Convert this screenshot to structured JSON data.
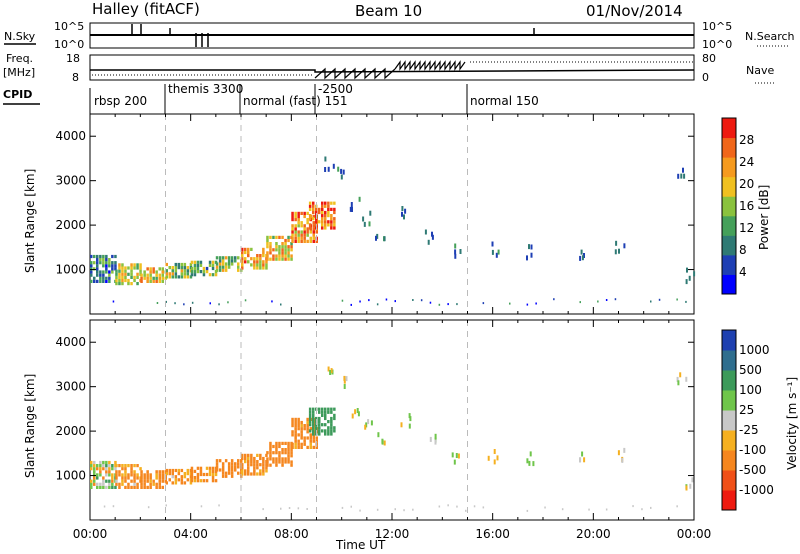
{
  "header": {
    "station": "Halley (fitACF)",
    "beam": "Beam 10",
    "date": "01/Nov/2014"
  },
  "summary": {
    "nsky_label": "N.Sky",
    "nsky_ticks": [
      "10^5",
      "10^0"
    ],
    "nsearch_label": "N.Search",
    "nsearch_ticks": [
      "10^5",
      "10^0"
    ],
    "freq_label": "Freq.",
    "freq_unit": "[MHz]",
    "freq_ticks": [
      "18",
      "8"
    ],
    "nave_label": "Nave",
    "nave_ticks": [
      "80",
      "0"
    ],
    "cpid_label": "CPID"
  },
  "cpid_modes": [
    {
      "label": "rbsp 200",
      "start_h": 0
    },
    {
      "label": "themis 3300",
      "start_h": 3
    },
    {
      "label": "normal (fast) 151",
      "start_h": 6
    },
    {
      "label": "-2500",
      "start_h": 9
    },
    {
      "label": "normal 150",
      "start_h": 15
    }
  ],
  "colors": {
    "power": [
      "#0000ff",
      "#1e3fb4",
      "#2f7a74",
      "#45a05a",
      "#8ac23e",
      "#f0c020",
      "#f59a1e",
      "#f0661a",
      "#ee1a10"
    ],
    "velocity": [
      "#ee1a10",
      "#f05018",
      "#f5861e",
      "#f5b020",
      "#c8c8c8",
      "#6fc54a",
      "#3c9a5a",
      "#2f6e8e",
      "#1e40b0"
    ],
    "ground_scatter": "#c8c8c8"
  },
  "chart_data": [
    {
      "type": "heatmap",
      "panel": "power",
      "ylabel": "Slant Range [km]",
      "xlabel": "Time UT",
      "x_ticks": [
        "00:00",
        "04:00",
        "08:00",
        "12:00",
        "16:00",
        "20:00",
        "00:00"
      ],
      "xlim": [
        0,
        24
      ],
      "ylim": [
        0,
        4500
      ],
      "y_ticks": [
        1000,
        2000,
        3000,
        4000
      ],
      "colorbar": {
        "label": "Power [dB]",
        "ticks": [
          "4",
          "8",
          "12",
          "16",
          "20",
          "24",
          "28"
        ],
        "range": [
          0,
          32
        ]
      },
      "echo_band": [
        {
          "t": 0.5,
          "lo": 700,
          "hi": 1300,
          "p": 10
        },
        {
          "t": 1.5,
          "lo": 650,
          "hi": 1100,
          "p": 18
        },
        {
          "t": 2.5,
          "lo": 700,
          "hi": 1050,
          "p": 20
        },
        {
          "t": 3.5,
          "lo": 800,
          "hi": 1100,
          "p": 16
        },
        {
          "t": 4.5,
          "lo": 850,
          "hi": 1200,
          "p": 14
        },
        {
          "t": 5.5,
          "lo": 950,
          "hi": 1300,
          "p": 16
        },
        {
          "t": 6.5,
          "lo": 1000,
          "hi": 1450,
          "p": 22
        },
        {
          "t": 7.5,
          "lo": 1200,
          "hi": 1700,
          "p": 20
        },
        {
          "t": 8.5,
          "lo": 1600,
          "hi": 2300,
          "p": 24
        },
        {
          "t": 9.2,
          "lo": 1900,
          "hi": 2500,
          "p": 26
        }
      ],
      "sparse_echoes": [
        {
          "t": 9.5,
          "r": 3400
        },
        {
          "t": 10.0,
          "r": 3200
        },
        {
          "t": 10.5,
          "r": 2500
        },
        {
          "t": 11.0,
          "r": 2200
        },
        {
          "t": 11.5,
          "r": 1900
        },
        {
          "t": 12.5,
          "r": 2300
        },
        {
          "t": 13.5,
          "r": 1800
        },
        {
          "t": 14.5,
          "r": 1500
        },
        {
          "t": 16.0,
          "r": 1500
        },
        {
          "t": 17.5,
          "r": 1450
        },
        {
          "t": 19.5,
          "r": 1400
        },
        {
          "t": 21.0,
          "r": 1500
        },
        {
          "t": 23.5,
          "r": 3200
        },
        {
          "t": 23.8,
          "r": 900
        }
      ]
    },
    {
      "type": "heatmap",
      "panel": "velocity",
      "ylabel": "Slant Range [km]",
      "xlabel": "Time UT",
      "x_ticks": [
        "00:00",
        "04:00",
        "08:00",
        "12:00",
        "16:00",
        "20:00",
        "00:00"
      ],
      "xlim": [
        0,
        24
      ],
      "ylim": [
        0,
        4500
      ],
      "y_ticks": [
        1000,
        2000,
        3000,
        4000
      ],
      "colorbar": {
        "label": "Velocity [m s⁻¹]",
        "ticks": [
          "-1000",
          "-500",
          "-100",
          "-25",
          "25",
          "100",
          "500",
          "1000"
        ]
      },
      "echo_band": [
        {
          "t": 0.5,
          "lo": 700,
          "hi": 1300,
          "v": 0
        },
        {
          "t": 1.5,
          "lo": 700,
          "hi": 1200,
          "v": -150
        },
        {
          "t": 2.5,
          "lo": 700,
          "hi": 1100,
          "v": -200
        },
        {
          "t": 3.5,
          "lo": 800,
          "hi": 1100,
          "v": -150
        },
        {
          "t": 4.5,
          "lo": 850,
          "hi": 1200,
          "v": -200
        },
        {
          "t": 5.5,
          "lo": 950,
          "hi": 1350,
          "v": -250
        },
        {
          "t": 6.5,
          "lo": 1000,
          "hi": 1450,
          "v": -200
        },
        {
          "t": 7.5,
          "lo": 1200,
          "hi": 1700,
          "v": -250
        },
        {
          "t": 8.5,
          "lo": 1600,
          "hi": 2300,
          "v": -200
        },
        {
          "t": 9.2,
          "lo": 1900,
          "hi": 2500,
          "v": 300
        }
      ]
    }
  ]
}
